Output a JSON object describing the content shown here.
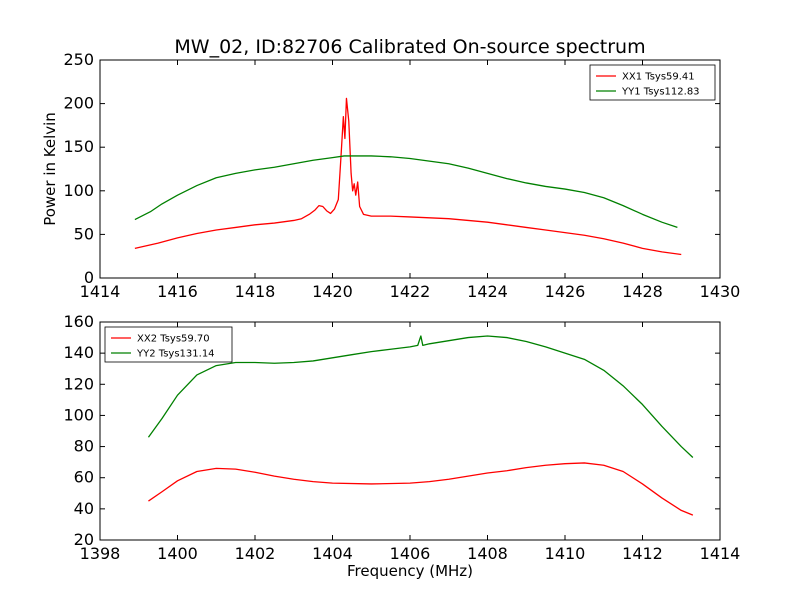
{
  "chart_data": [
    {
      "type": "line",
      "title": "MW_02, ID:82706 Calibrated On-source spectrum",
      "xlabel": "",
      "ylabel": "Power in Kelvin",
      "xlim": [
        1414,
        1430
      ],
      "ylim": [
        0,
        250
      ],
      "xticks": [
        "1414",
        "1416",
        "1418",
        "1420",
        "1422",
        "1424",
        "1426",
        "1428",
        "1430"
      ],
      "yticks": [
        "0",
        "50",
        "100",
        "150",
        "200",
        "250"
      ],
      "legend_position": "top-right",
      "grid": false,
      "series": [
        {
          "name": "XX1 Tsys59.41",
          "color": "#ff0000",
          "points": [
            [
              1414.9,
              34
            ],
            [
              1415.5,
              40
            ],
            [
              1416,
              46
            ],
            [
              1416.5,
              51
            ],
            [
              1417,
              55
            ],
            [
              1417.5,
              58
            ],
            [
              1418,
              61
            ],
            [
              1418.5,
              63
            ],
            [
              1419,
              66
            ],
            [
              1419.2,
              68
            ],
            [
              1419.4,
              73
            ],
            [
              1419.55,
              78
            ],
            [
              1419.65,
              83
            ],
            [
              1419.75,
              82
            ],
            [
              1419.85,
              77
            ],
            [
              1419.95,
              74
            ],
            [
              1420.05,
              79
            ],
            [
              1420.15,
              90
            ],
            [
              1420.22,
              140
            ],
            [
              1420.28,
              185
            ],
            [
              1420.32,
              160
            ],
            [
              1420.36,
              206
            ],
            [
              1420.42,
              180
            ],
            [
              1420.48,
              120
            ],
            [
              1420.52,
              100
            ],
            [
              1420.56,
              108
            ],
            [
              1420.6,
              95
            ],
            [
              1420.65,
              110
            ],
            [
              1420.7,
              82
            ],
            [
              1420.8,
              73
            ],
            [
              1421,
              71
            ],
            [
              1421.5,
              71
            ],
            [
              1422,
              70
            ],
            [
              1422.5,
              69
            ],
            [
              1423,
              68
            ],
            [
              1423.5,
              66
            ],
            [
              1424,
              64
            ],
            [
              1424.5,
              61
            ],
            [
              1425,
              58
            ],
            [
              1425.5,
              55
            ],
            [
              1426,
              52
            ],
            [
              1426.5,
              49
            ],
            [
              1427,
              45
            ],
            [
              1427.5,
              40
            ],
            [
              1428,
              34
            ],
            [
              1428.5,
              30
            ],
            [
              1429,
              27
            ]
          ]
        },
        {
          "name": "YY1 Tsys112.83",
          "color": "#008000",
          "points": [
            [
              1414.9,
              67
            ],
            [
              1415.3,
              76
            ],
            [
              1415.6,
              85
            ],
            [
              1416,
              95
            ],
            [
              1416.5,
              106
            ],
            [
              1417,
              115
            ],
            [
              1417.5,
              120
            ],
            [
              1418,
              124
            ],
            [
              1418.5,
              127
            ],
            [
              1419,
              131
            ],
            [
              1419.5,
              135
            ],
            [
              1420,
              138
            ],
            [
              1420.3,
              140
            ],
            [
              1420.6,
              140
            ],
            [
              1421,
              140
            ],
            [
              1421.5,
              139
            ],
            [
              1422,
              137
            ],
            [
              1422.5,
              134
            ],
            [
              1423,
              131
            ],
            [
              1423.5,
              126
            ],
            [
              1424,
              120
            ],
            [
              1424.5,
              114
            ],
            [
              1425,
              109
            ],
            [
              1425.5,
              105
            ],
            [
              1426,
              102
            ],
            [
              1426.5,
              98
            ],
            [
              1427,
              92
            ],
            [
              1427.5,
              83
            ],
            [
              1428,
              73
            ],
            [
              1428.5,
              64
            ],
            [
              1428.9,
              58
            ]
          ]
        }
      ]
    },
    {
      "type": "line",
      "title": "",
      "xlabel": "Frequency (MHz)",
      "ylabel": "",
      "xlim": [
        1398,
        1414
      ],
      "ylim": [
        20,
        160
      ],
      "xticks": [
        "1398",
        "1400",
        "1402",
        "1404",
        "1406",
        "1408",
        "1410",
        "1412",
        "1414"
      ],
      "yticks": [
        "20",
        "40",
        "60",
        "80",
        "100",
        "120",
        "140",
        "160"
      ],
      "legend_position": "top-left",
      "grid": false,
      "series": [
        {
          "name": "XX2 Tsys59.70",
          "color": "#ff0000",
          "points": [
            [
              1399.25,
              45
            ],
            [
              1399.6,
              51
            ],
            [
              1400,
              58
            ],
            [
              1400.5,
              64
            ],
            [
              1401,
              66
            ],
            [
              1401.5,
              65.5
            ],
            [
              1402,
              63.5
            ],
            [
              1402.5,
              61
            ],
            [
              1403,
              59
            ],
            [
              1403.5,
              57.5
            ],
            [
              1404,
              56.5
            ],
            [
              1405,
              56
            ],
            [
              1406,
              56.5
            ],
            [
              1406.5,
              57.5
            ],
            [
              1407,
              59
            ],
            [
              1407.5,
              61
            ],
            [
              1408,
              63
            ],
            [
              1408.5,
              64.5
            ],
            [
              1409,
              66.5
            ],
            [
              1409.5,
              68
            ],
            [
              1410,
              69
            ],
            [
              1410.5,
              69.5
            ],
            [
              1411,
              68
            ],
            [
              1411.5,
              64
            ],
            [
              1412,
              56
            ],
            [
              1412.5,
              47
            ],
            [
              1413,
              39
            ],
            [
              1413.3,
              36
            ]
          ]
        },
        {
          "name": "YY2 Tsys131.14",
          "color": "#008000",
          "points": [
            [
              1399.25,
              86
            ],
            [
              1399.6,
              98
            ],
            [
              1400,
              113
            ],
            [
              1400.5,
              126
            ],
            [
              1401,
              132
            ],
            [
              1401.5,
              134
            ],
            [
              1402,
              134
            ],
            [
              1402.5,
              133.5
            ],
            [
              1403,
              134
            ],
            [
              1403.5,
              135
            ],
            [
              1404,
              137
            ],
            [
              1404.5,
              139
            ],
            [
              1405,
              141
            ],
            [
              1405.5,
              142.5
            ],
            [
              1406,
              144
            ],
            [
              1406.2,
              145
            ],
            [
              1406.28,
              151
            ],
            [
              1406.33,
              145
            ],
            [
              1406.5,
              146
            ],
            [
              1407,
              148
            ],
            [
              1407.5,
              150
            ],
            [
              1408,
              151
            ],
            [
              1408.5,
              150
            ],
            [
              1409,
              147.5
            ],
            [
              1409.5,
              144
            ],
            [
              1410,
              140
            ],
            [
              1410.5,
              136
            ],
            [
              1411,
              129
            ],
            [
              1411.5,
              119
            ],
            [
              1412,
              107
            ],
            [
              1412.5,
              93
            ],
            [
              1413,
              80
            ],
            [
              1413.3,
              73
            ]
          ]
        }
      ]
    }
  ]
}
